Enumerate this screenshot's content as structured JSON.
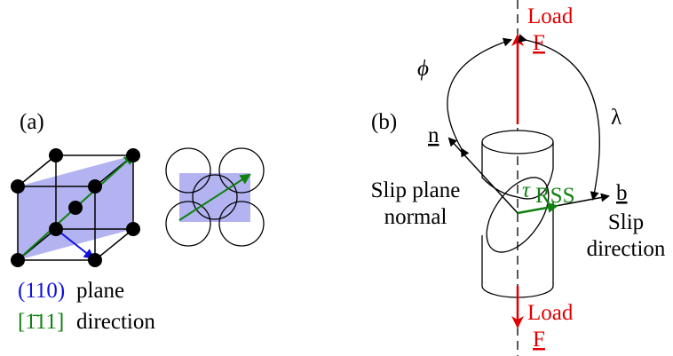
{
  "panel_a": {
    "label": "(a)",
    "plane_index": "(110)",
    "plane_text": "plane",
    "direction_index": "[1̄11]",
    "direction_text": "direction"
  },
  "panel_b": {
    "label": "(b)",
    "load_top": {
      "label": "Load",
      "symbol": "F"
    },
    "load_bottom": {
      "label": "Load",
      "symbol": "F"
    },
    "angle_phi": "ϕ",
    "angle_lambda": "λ",
    "normal": {
      "symbol": "n",
      "label_lines": [
        "Slip plane",
        "normal"
      ]
    },
    "stress": {
      "symbol": "τ",
      "subscript": "RSS"
    },
    "direction": {
      "symbol": "b",
      "label_lines": [
        "Slip",
        "direction"
      ]
    }
  }
}
